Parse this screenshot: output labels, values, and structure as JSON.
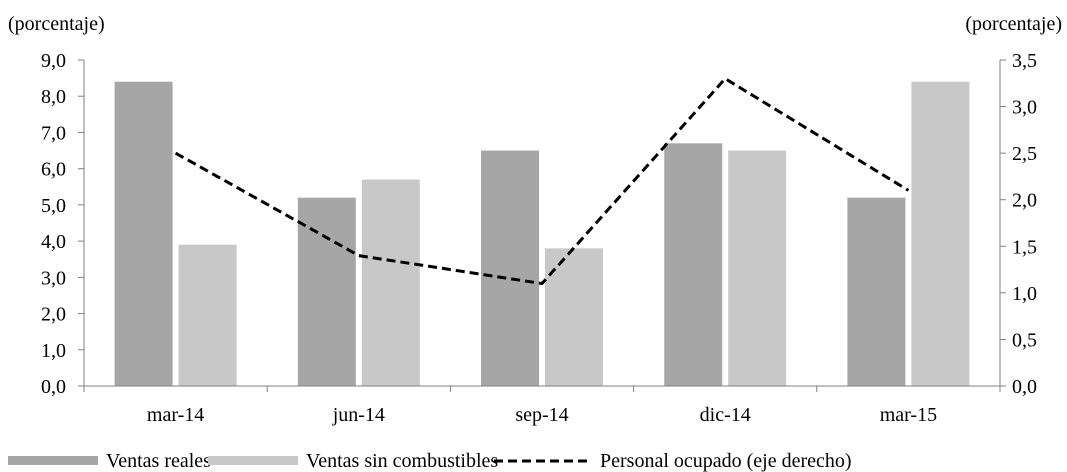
{
  "chart_data": {
    "type": "bar",
    "categories": [
      "mar-14",
      "jun-14",
      "sep-14",
      "dic-14",
      "mar-15"
    ],
    "series": [
      {
        "name": "Ventas reales",
        "kind": "bar",
        "axis": "left",
        "color": "#a6a6a6",
        "values": [
          8.4,
          5.2,
          6.5,
          6.7,
          5.2
        ]
      },
      {
        "name": "Ventas sin combustibles",
        "kind": "bar",
        "axis": "left",
        "color": "#c8c8c8",
        "values": [
          3.9,
          5.7,
          3.8,
          6.5,
          8.4
        ]
      },
      {
        "name": "Personal ocupado (eje derecho)",
        "kind": "line",
        "axis": "right",
        "color": "#000000",
        "dashed": true,
        "values": [
          2.5,
          1.4,
          1.1,
          3.3,
          2.1
        ]
      }
    ],
    "left_axis": {
      "label": "(porcentaje)",
      "min": 0,
      "max": 9,
      "step": 1,
      "ticks": [
        "0,0",
        "1,0",
        "2,0",
        "3,0",
        "4,0",
        "5,0",
        "6,0",
        "7,0",
        "8,0",
        "9,0"
      ]
    },
    "right_axis": {
      "label": "(porcentaje)",
      "min": 0,
      "max": 3.5,
      "step": 0.5,
      "ticks": [
        "0,0",
        "0,5",
        "1,0",
        "1,5",
        "2,0",
        "2,5",
        "3,0",
        "3,5"
      ]
    },
    "grid": false,
    "legend": "bottom"
  }
}
